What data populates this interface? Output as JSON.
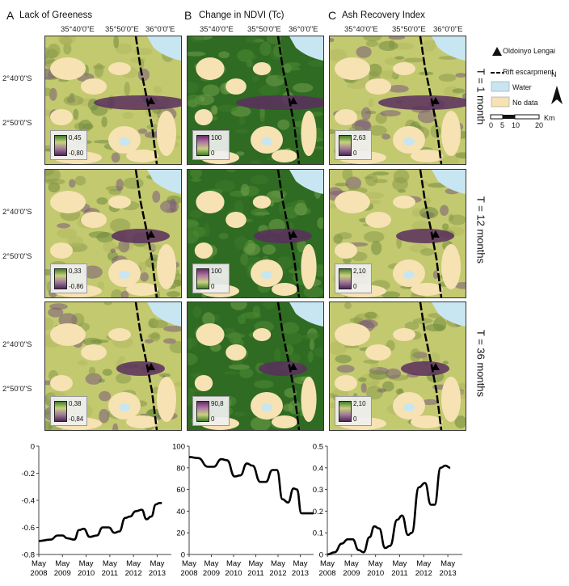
{
  "panels": [
    {
      "letter": "A",
      "title": "Lack of Greeness"
    },
    {
      "letter": "B",
      "title": "Change in NDVI (Tc)"
    },
    {
      "letter": "C",
      "title": "Ash Recovery Index"
    }
  ],
  "lon_labels": [
    "35°40'0\"E",
    "35°50'0\"E",
    "36°0'0\"E"
  ],
  "lat_labels": [
    "2°40'0\"S",
    "2°50'0\"S"
  ],
  "row_labels": [
    "T = 1 month",
    "T = 12 months",
    "T = 36 months"
  ],
  "map_legends": [
    [
      {
        "hi": "0,45",
        "lo": "-0,80"
      },
      {
        "hi": "100",
        "lo": "0"
      },
      {
        "hi": "2,63",
        "lo": "0"
      }
    ],
    [
      {
        "hi": "0,33",
        "lo": "-0,86"
      },
      {
        "hi": "100",
        "lo": "0"
      },
      {
        "hi": "2,10",
        "lo": "0"
      }
    ],
    [
      {
        "hi": "0,38",
        "lo": "-0,84"
      },
      {
        "hi": "90,8",
        "lo": "0"
      },
      {
        "hi": "2,10",
        "lo": "0"
      }
    ]
  ],
  "map_key": {
    "volcano": "Oldoinyo Lengai",
    "rift": "Rift escarpment",
    "water": "Water",
    "nodata": "No data",
    "north": "N",
    "scale_unit": "Km",
    "scale_ticks": [
      "0",
      "5",
      "10",
      "20"
    ]
  },
  "colors": {
    "green_dark": "#2f6b22",
    "green_mid": "#6f9a3d",
    "yellow_green": "#c3c96f",
    "purple": "#5a2e5e",
    "cream": "#f6e2b3",
    "water": "#c8e6f2"
  },
  "chart_data": [
    {
      "type": "line",
      "title": "Lack of Greeness",
      "x": [
        "May 2008",
        "May 2009",
        "May 2010",
        "May 2011",
        "May 2012",
        "May 2013"
      ],
      "ylim": [
        -0.8,
        0
      ],
      "yticks": [
        "0",
        "-0.2",
        "-0.4",
        "-0.6",
        "-0.8"
      ],
      "series": [
        {
          "name": "Lack of Greeness",
          "points": [
            [
              0,
              -0.7
            ],
            [
              0.5,
              -0.69
            ],
            [
              0.8,
              -0.66
            ],
            [
              1.0,
              -0.66
            ],
            [
              1.2,
              -0.68
            ],
            [
              1.5,
              -0.69
            ],
            [
              1.7,
              -0.62
            ],
            [
              1.9,
              -0.61
            ],
            [
              2.15,
              -0.67
            ],
            [
              2.45,
              -0.66
            ],
            [
              2.7,
              -0.6
            ],
            [
              2.95,
              -0.6
            ],
            [
              3.2,
              -0.64
            ],
            [
              3.4,
              -0.63
            ],
            [
              3.65,
              -0.53
            ],
            [
              3.85,
              -0.52
            ],
            [
              4.1,
              -0.48
            ],
            [
              4.35,
              -0.47
            ],
            [
              4.55,
              -0.54
            ],
            [
              4.75,
              -0.52
            ],
            [
              4.95,
              -0.43
            ],
            [
              5.1,
              -0.42
            ],
            [
              5.2,
              -0.42
            ]
          ]
        }
      ]
    },
    {
      "type": "line",
      "title": "Change in NDVI (Tc)",
      "x": [
        "May 2008",
        "May 2009",
        "May 2010",
        "May 2011",
        "May 2012",
        "May 2013"
      ],
      "ylim": [
        0,
        100
      ],
      "yticks": [
        "100",
        "80",
        "60",
        "40",
        "20",
        "0"
      ],
      "series": [
        {
          "name": "Change in NDVI (Tc)",
          "points": [
            [
              0,
              90
            ],
            [
              0.4,
              89
            ],
            [
              0.85,
              81
            ],
            [
              1.1,
              81
            ],
            [
              1.45,
              88
            ],
            [
              1.7,
              87
            ],
            [
              2.05,
              72
            ],
            [
              2.3,
              73
            ],
            [
              2.6,
              84
            ],
            [
              2.85,
              82
            ],
            [
              3.2,
              67
            ],
            [
              3.45,
              67
            ],
            [
              3.75,
              78
            ],
            [
              3.95,
              78
            ],
            [
              4.2,
              51
            ],
            [
              4.45,
              48
            ],
            [
              4.7,
              61
            ],
            [
              4.85,
              60
            ],
            [
              5.05,
              38
            ],
            [
              5.2,
              38
            ],
            [
              5.6,
              38
            ]
          ]
        }
      ]
    },
    {
      "type": "line",
      "title": "Ash Recovery Index",
      "x": [
        "May 2008",
        "May 2009",
        "May 2010",
        "May 2011",
        "May 2012",
        "May 2013"
      ],
      "ylim": [
        0,
        0.5
      ],
      "yticks": [
        "0.5",
        "0.4",
        "0.3",
        "0.2",
        "0.1",
        "0"
      ],
      "series": [
        {
          "name": "Ash Recovery Index",
          "points": [
            [
              0,
              0.0
            ],
            [
              0.3,
              0.01
            ],
            [
              0.6,
              0.05
            ],
            [
              0.85,
              0.07
            ],
            [
              1.05,
              0.07
            ],
            [
              1.3,
              0.02
            ],
            [
              1.5,
              0.01
            ],
            [
              1.75,
              0.08
            ],
            [
              1.95,
              0.13
            ],
            [
              2.15,
              0.12
            ],
            [
              2.4,
              0.03
            ],
            [
              2.6,
              0.04
            ],
            [
              2.9,
              0.16
            ],
            [
              3.1,
              0.18
            ],
            [
              3.35,
              0.09
            ],
            [
              3.5,
              0.1
            ],
            [
              3.8,
              0.31
            ],
            [
              4.05,
              0.33
            ],
            [
              4.3,
              0.23
            ],
            [
              4.45,
              0.23
            ],
            [
              4.7,
              0.4
            ],
            [
              4.9,
              0.41
            ],
            [
              5.1,
              0.4
            ]
          ]
        }
      ]
    }
  ]
}
